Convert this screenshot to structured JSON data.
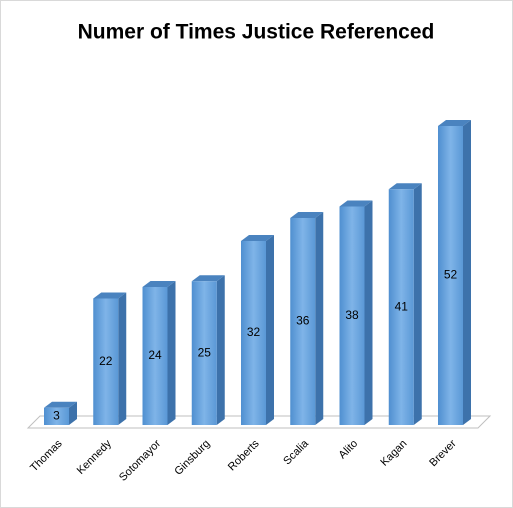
{
  "chart_data": {
    "type": "bar3d",
    "title": "Numer of Times Justice Referenced",
    "categories": [
      "Thomas",
      "Kennedy",
      "Sotomayor",
      "Ginsburg",
      "Roberts",
      "Scalia",
      "Alito",
      "Kagan",
      "Brever"
    ],
    "values": [
      3,
      22,
      24,
      25,
      32,
      36,
      38,
      41,
      52
    ],
    "color": "#5b9bd5"
  }
}
